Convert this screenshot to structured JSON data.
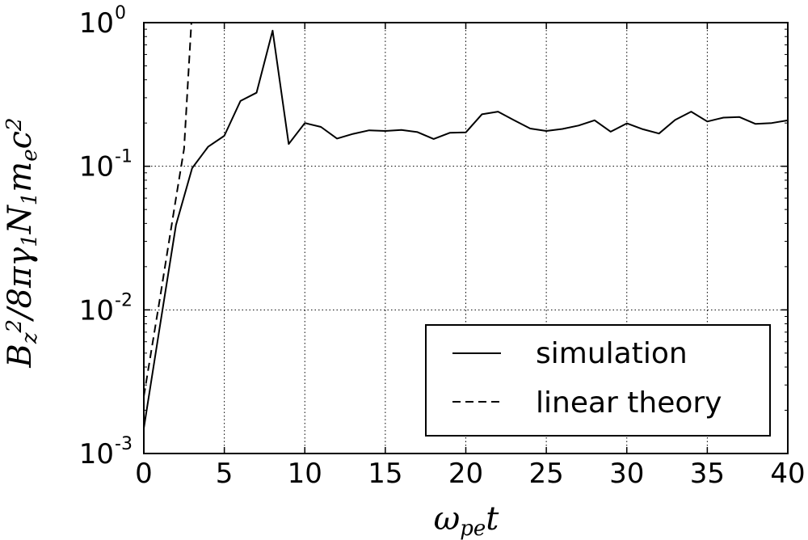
{
  "chart_data": {
    "type": "line",
    "xlabel": "ω_pe t",
    "xlabel_parts": {
      "main": "ω",
      "sub": "pe",
      "tail": "t"
    },
    "ylabel": "B_z^2 / 8πγ_1 N_1 m_e c^2",
    "ylabel_parts": [
      {
        "t": "B",
        "style": "main"
      },
      {
        "t": "z",
        "style": "sub"
      },
      {
        "t": "2",
        "style": "sup"
      },
      {
        "t": "/8πγ",
        "style": "main"
      },
      {
        "t": "1",
        "style": "sub"
      },
      {
        "t": "N",
        "style": "main"
      },
      {
        "t": "1",
        "style": "sub"
      },
      {
        "t": "m",
        "style": "main"
      },
      {
        "t": "e",
        "style": "sub"
      },
      {
        "t": "c",
        "style": "main"
      },
      {
        "t": "2",
        "style": "sup"
      }
    ],
    "xlim": [
      0,
      40
    ],
    "ylim": [
      0.001,
      1
    ],
    "yscale": "log",
    "grid": true,
    "grid_style": "dotted",
    "legend_position": "lower-right",
    "x_ticks": [
      0,
      5,
      10,
      15,
      20,
      25,
      30,
      35,
      40
    ],
    "x_tick_labels": [
      "0",
      "5",
      "10",
      "15",
      "20",
      "25",
      "30",
      "35",
      "40"
    ],
    "y_ticks": [
      {
        "value": 0.001,
        "base": "10",
        "exp": "-3"
      },
      {
        "value": 0.01,
        "base": "10",
        "exp": "-2"
      },
      {
        "value": 0.1,
        "base": "10",
        "exp": "-1"
      },
      {
        "value": 1,
        "base": "10",
        "exp": "0"
      }
    ],
    "series": [
      {
        "name": "simulation",
        "style": "solid",
        "color": "#000000",
        "x": [
          0,
          1,
          2,
          3,
          4,
          5,
          6,
          7,
          8,
          9,
          10,
          11,
          12,
          13,
          14,
          15,
          16,
          17,
          18,
          19,
          20,
          21,
          22,
          23,
          24,
          25,
          26,
          27,
          28,
          29,
          30,
          31,
          32,
          33,
          34,
          35,
          36,
          37,
          38,
          39,
          40
        ],
        "y": [
          0.0015,
          0.0077,
          0.039,
          0.097,
          0.137,
          0.163,
          0.285,
          0.325,
          0.88,
          0.143,
          0.2,
          0.188,
          0.156,
          0.168,
          0.178,
          0.176,
          0.179,
          0.173,
          0.155,
          0.171,
          0.172,
          0.23,
          0.24,
          0.209,
          0.183,
          0.176,
          0.182,
          0.192,
          0.209,
          0.174,
          0.199,
          0.181,
          0.169,
          0.21,
          0.24,
          0.205,
          0.218,
          0.22,
          0.197,
          0.2,
          0.209
        ]
      },
      {
        "name": "linear theory",
        "style": "dashed",
        "color": "#000000",
        "x": [
          0,
          0.5,
          1,
          1.5,
          2,
          2.5,
          2.95
        ],
        "y": [
          0.0025,
          0.0055,
          0.012,
          0.027,
          0.06,
          0.132,
          0.99
        ]
      }
    ]
  }
}
